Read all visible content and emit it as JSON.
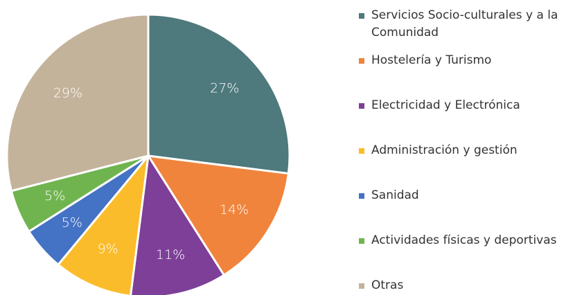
{
  "chart_data": {
    "type": "pie",
    "categories": [
      "Servicios Socio-culturales y a la Comunidad",
      "Hostelería y Turismo",
      "Electricidad y Electrónica",
      "Administración y gestión",
      "Sanidad",
      "Actividades físicas y deportivas",
      "Otras"
    ],
    "values": [
      27,
      14,
      11,
      9,
      5,
      5,
      29
    ],
    "value_labels": [
      "27%",
      "14%",
      "11%",
      "9%",
      "5%",
      "5%",
      "29%"
    ],
    "colors": [
      "#4e797d",
      "#f0843c",
      "#7d3f98",
      "#fbbc2c",
      "#4472c4",
      "#70b450",
      "#c4b39b"
    ],
    "legend": "right"
  }
}
